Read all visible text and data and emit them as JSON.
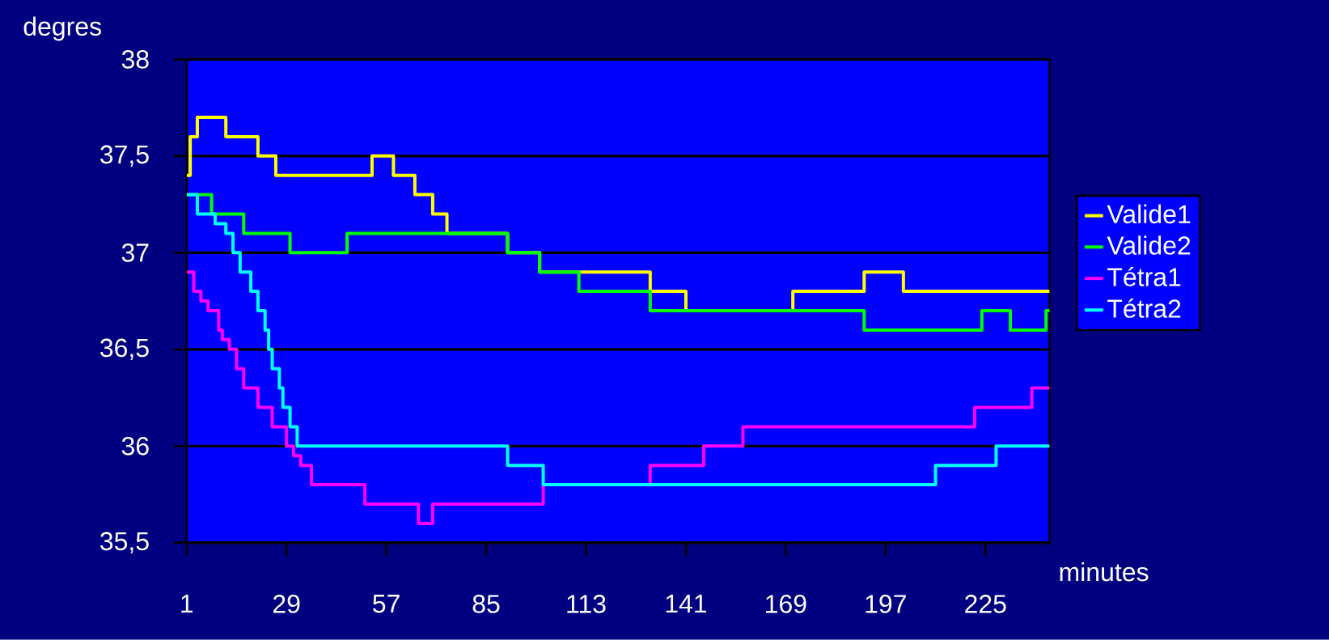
{
  "chart_data": {
    "type": "step",
    "xlabel": "minutes",
    "ylabel": "degres",
    "xlim": [
      1,
      243
    ],
    "ylim": [
      35.5,
      38
    ],
    "xticks": [
      1,
      29,
      57,
      85,
      113,
      141,
      169,
      197,
      225
    ],
    "yticks": [
      {
        "value": 35.5,
        "label": "35,5"
      },
      36,
      {
        "value": 36.5,
        "label": "36,5"
      },
      37,
      {
        "value": 37.5,
        "label": "37,5"
      },
      38
    ],
    "grid": "y",
    "legend": "right",
    "series": [
      {
        "name": "Valide1",
        "color": "#ffff00",
        "x": [
          1,
          2,
          4,
          12,
          21,
          26,
          53,
          59,
          65,
          70,
          74,
          91,
          100,
          131,
          141,
          171,
          191,
          202,
          243
        ],
        "values": [
          37.4,
          37.6,
          37.7,
          37.6,
          37.5,
          37.4,
          37.5,
          37.4,
          37.3,
          37.2,
          37.1,
          37.0,
          36.9,
          36.8,
          36.7,
          36.8,
          36.9,
          36.8,
          36.8
        ]
      },
      {
        "name": "Valide2",
        "color": "#00ff00",
        "x": [
          1,
          8,
          17,
          30,
          46,
          91,
          100,
          111,
          131,
          191,
          224,
          232,
          242,
          243
        ],
        "values": [
          37.3,
          37.2,
          37.1,
          37.0,
          37.1,
          37.0,
          36.9,
          36.8,
          36.7,
          36.6,
          36.7,
          36.6,
          36.7,
          36.7
        ]
      },
      {
        "name": "Tétra1",
        "color": "#ff00ff",
        "x": [
          1,
          3,
          5,
          7,
          10,
          11,
          13,
          15,
          17,
          21,
          25,
          29,
          31,
          33,
          36,
          51,
          66,
          70,
          101,
          131,
          146,
          157,
          222,
          238,
          243
        ],
        "values": [
          36.9,
          36.8,
          36.75,
          36.7,
          36.6,
          36.55,
          36.5,
          36.4,
          36.3,
          36.2,
          36.1,
          36.0,
          35.95,
          35.9,
          35.8,
          35.7,
          35.6,
          35.7,
          35.8,
          35.9,
          36.0,
          36.1,
          36.2,
          36.3,
          36.3
        ]
      },
      {
        "name": "Tétra2",
        "color": "#00ffff",
        "x": [
          1,
          4,
          9,
          12,
          14,
          16,
          19,
          21,
          23,
          24,
          25,
          27,
          28,
          30,
          32,
          91,
          101,
          211,
          228,
          243
        ],
        "values": [
          37.3,
          37.2,
          37.15,
          37.1,
          37.0,
          36.9,
          36.8,
          36.7,
          36.6,
          36.5,
          36.4,
          36.3,
          36.2,
          36.1,
          36.0,
          35.9,
          35.8,
          35.9,
          36.0,
          36.0
        ]
      }
    ]
  }
}
